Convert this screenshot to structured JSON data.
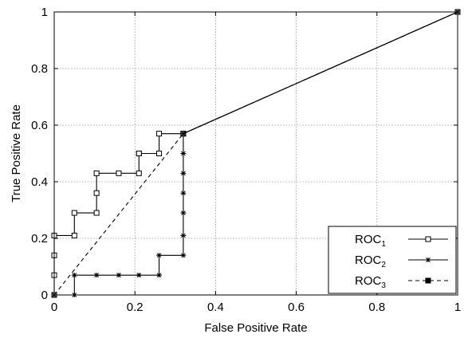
{
  "chart_data": {
    "type": "line",
    "xlabel": "False Positive Rate",
    "ylabel": "True Positive Rate",
    "xlim": [
      0,
      1
    ],
    "ylim": [
      0,
      1
    ],
    "xticks": [
      "0",
      "0.2",
      "0.4",
      "0.6",
      "0.8",
      "1"
    ],
    "yticks": [
      "0",
      "0.2",
      "0.4",
      "0.6",
      "0.8",
      "1"
    ],
    "grid": true,
    "legend_position": "bottom-right",
    "series": [
      {
        "name": "ROC",
        "subscript": "1",
        "marker": "open-square",
        "line": "solid",
        "x": [
          0,
          0,
          0,
          0,
          0.05,
          0.05,
          0.105,
          0.105,
          0.105,
          0.16,
          0.21,
          0.21,
          0.21,
          0.26,
          0.26,
          0.32,
          1
        ],
        "y": [
          0,
          0.07,
          0.14,
          0.21,
          0.21,
          0.29,
          0.29,
          0.36,
          0.43,
          0.43,
          0.43,
          0.5,
          0.5,
          0.5,
          0.57,
          0.57,
          1
        ]
      },
      {
        "name": "ROC",
        "subscript": "2",
        "marker": "asterisk",
        "line": "solid",
        "x": [
          0,
          0.05,
          0.05,
          0.105,
          0.16,
          0.21,
          0.26,
          0.26,
          0.32,
          0.32,
          0.32,
          0.32,
          0.32,
          0.32,
          0.32,
          0.32,
          1
        ],
        "y": [
          0,
          0,
          0.07,
          0.07,
          0.07,
          0.07,
          0.07,
          0.14,
          0.14,
          0.21,
          0.29,
          0.36,
          0.43,
          0.5,
          0.57,
          0.57,
          1
        ]
      },
      {
        "name": "ROC",
        "subscript": "3",
        "marker": "filled-square",
        "line": "dashed",
        "x": [
          0,
          0.32,
          1
        ],
        "y": [
          0,
          0.57,
          1
        ]
      }
    ]
  }
}
